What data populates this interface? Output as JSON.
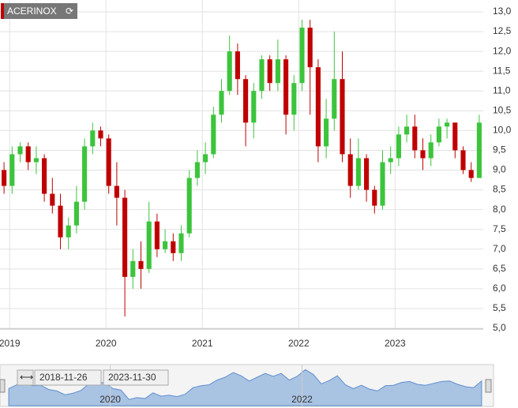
{
  "chart_data": {
    "type": "candlestick",
    "badge": "ACERINOX",
    "range_start": "2018-11-26",
    "range_end": "2023-11-30",
    "up_color": "#3cc43c",
    "down_color": "#c00000",
    "grid": true,
    "xlim": [
      2018.9,
      2023.915
    ],
    "xticks": [
      2019,
      2020,
      2021,
      2022,
      2023
    ],
    "navigator_ticks": [
      2020,
      2022
    ],
    "ylim": [
      5,
      13
    ],
    "yticks": [
      {
        "value": 5,
        "label": "5,0"
      },
      {
        "value": 5.5,
        "label": "5,5"
      },
      {
        "value": 6,
        "label": "6,0"
      },
      {
        "value": 6.5,
        "label": "6,5"
      },
      {
        "value": 7,
        "label": "7,0"
      },
      {
        "value": 7.5,
        "label": "7,5"
      },
      {
        "value": 8,
        "label": "8,0"
      },
      {
        "value": 8.5,
        "label": "8,5"
      },
      {
        "value": 9,
        "label": "9,0"
      },
      {
        "value": 9.5,
        "label": "9,5"
      },
      {
        "value": 10,
        "label": "10,0"
      },
      {
        "value": 10.5,
        "label": "10,5"
      },
      {
        "value": 11,
        "label": "11,0"
      },
      {
        "value": 11.5,
        "label": "11,5"
      },
      {
        "value": 12,
        "label": "12,0"
      },
      {
        "value": 12.5,
        "label": "12,5"
      },
      {
        "value": 13,
        "label": "13,0"
      }
    ],
    "open": [
      9.0,
      8.6,
      9.4,
      9.6,
      9.2,
      9.3,
      8.4,
      8.1,
      7.3,
      7.6,
      8.2,
      9.6,
      10.0,
      9.8,
      8.6,
      8.3,
      6.3,
      6.7,
      6.5,
      7.7,
      7.0,
      7.2,
      6.9,
      7.4,
      8.8,
      9.2,
      9.4,
      10.4,
      11.0,
      12.0,
      11.3,
      10.2,
      11.0,
      11.8,
      11.2,
      11.8,
      10.4,
      11.2,
      12.6,
      11.6,
      9.6,
      10.3,
      11.3,
      9.4,
      8.6,
      9.3,
      8.5,
      8.1,
      9.2,
      9.3,
      9.9,
      10.1,
      9.5,
      9.3,
      9.7,
      10.1,
      10.2,
      9.5,
      9.0,
      8.8
    ],
    "high": [
      9.2,
      9.6,
      9.7,
      9.7,
      9.6,
      9.4,
      8.8,
      8.4,
      7.8,
      8.6,
      9.8,
      10.2,
      10.1,
      9.9,
      9.2,
      8.5,
      7.0,
      7.2,
      8.2,
      7.9,
      7.5,
      7.4,
      7.6,
      9.0,
      9.5,
      9.7,
      10.6,
      11.3,
      12.4,
      12.2,
      11.4,
      11.2,
      11.9,
      11.9,
      12.3,
      11.9,
      11.4,
      12.8,
      12.8,
      11.8,
      10.8,
      12.5,
      12.0,
      9.8,
      9.8,
      9.4,
      8.6,
      9.5,
      9.6,
      10.1,
      10.4,
      10.4,
      9.8,
      9.9,
      10.3,
      10.3,
      10.2,
      9.6,
      9.2,
      10.4
    ],
    "low": [
      8.4,
      8.4,
      9.2,
      9.0,
      8.9,
      8.2,
      7.9,
      7.0,
      7.0,
      7.4,
      8.0,
      9.4,
      9.6,
      8.4,
      7.6,
      5.3,
      6.0,
      6.0,
      6.4,
      6.8,
      6.9,
      6.7,
      6.7,
      7.3,
      8.6,
      8.9,
      9.3,
      10.2,
      10.9,
      10.9,
      9.6,
      9.8,
      10.8,
      11.0,
      11.0,
      9.9,
      10.0,
      11.0,
      10.4,
      9.2,
      9.3,
      10.0,
      9.2,
      8.3,
      8.5,
      8.2,
      7.9,
      8.0,
      8.9,
      9.1,
      9.7,
      9.3,
      9.0,
      9.1,
      9.6,
      9.8,
      9.3,
      8.9,
      8.7,
      8.8
    ],
    "close": [
      8.6,
      9.4,
      9.6,
      9.2,
      9.3,
      8.4,
      8.1,
      7.3,
      7.6,
      8.2,
      9.6,
      10.0,
      9.8,
      8.6,
      8.3,
      6.3,
      6.7,
      6.5,
      7.7,
      7.0,
      7.2,
      6.9,
      7.4,
      8.8,
      9.2,
      9.4,
      10.4,
      11.0,
      12.0,
      11.3,
      10.2,
      11.0,
      11.8,
      11.2,
      11.8,
      10.4,
      11.2,
      12.6,
      11.6,
      9.6,
      10.3,
      11.3,
      9.4,
      8.6,
      9.3,
      8.5,
      8.1,
      9.2,
      9.3,
      9.9,
      10.1,
      9.5,
      9.3,
      9.7,
      10.1,
      10.2,
      9.5,
      9.0,
      8.8,
      10.2
    ]
  }
}
